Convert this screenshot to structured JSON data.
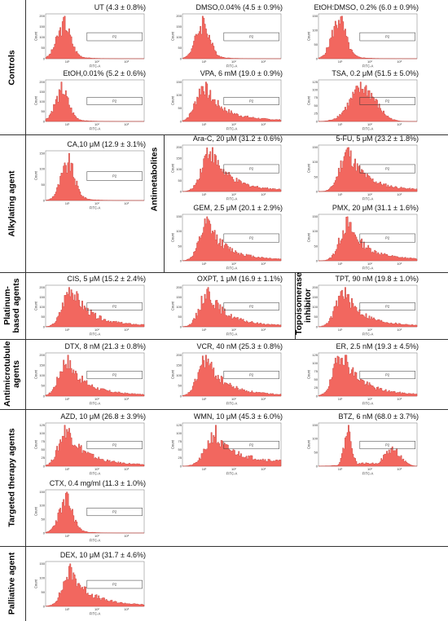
{
  "groups": [
    {
      "id": "controls",
      "label": "Controls"
    },
    {
      "id": "alkylating",
      "label": "Alkylating agent"
    },
    {
      "id": "antimetabolites",
      "label": "Antimetabolites"
    },
    {
      "id": "platinum",
      "label": "Platinum-based agents"
    },
    {
      "id": "topo",
      "label": "Topoisomerase inhibitor"
    },
    {
      "id": "antimicrotubule",
      "label": "Antimicrotubule agents"
    },
    {
      "id": "targeted",
      "label": "Targeted therapy agents"
    },
    {
      "id": "palliative",
      "label": "Palliative agent"
    }
  ],
  "axis": {
    "xlabel": "FITC-A",
    "ylabel": "Count",
    "gate_label": "P2",
    "xticks": [
      "10¹",
      "10²",
      "10³"
    ]
  },
  "chart_data": [
    {
      "type": "area",
      "title": "UT (4.3 ± 0.8%)",
      "shape": "low",
      "peak": 0.18,
      "yticks": [
        "0",
        "50",
        "100",
        "150",
        "200"
      ],
      "xlabel": "FITC-A",
      "ylabel": "Count"
    },
    {
      "type": "area",
      "title": "DMSO,0.04% (4.5 ± 0.9%)",
      "shape": "low",
      "peak": 0.2,
      "yticks": [
        "0",
        "50",
        "100",
        "150",
        "200"
      ],
      "xlabel": "FITC-A",
      "ylabel": "Count"
    },
    {
      "type": "area",
      "title": "EtOH:DMSO, 0.2% (6.0 ± 0.9%)",
      "shape": "low",
      "peak": 0.2,
      "yticks": [
        "0",
        "50",
        "100",
        "150"
      ],
      "xlabel": "FITC-A",
      "ylabel": "Count"
    },
    {
      "type": "area",
      "title": "EtOH,0.01% (5.2 ± 0.6%)",
      "shape": "low",
      "peak": 0.16,
      "yticks": [
        "0",
        "50",
        "100",
        "150",
        "200"
      ],
      "xlabel": "FITC-A",
      "ylabel": "Count"
    },
    {
      "type": "area",
      "title": "VPA, 6 mM (19.0 ± 0.9%)",
      "shape": "tail",
      "peak": 0.22,
      "yticks": [
        "0",
        "50",
        "100",
        "150"
      ],
      "xlabel": "FITC-A",
      "ylabel": "Count"
    },
    {
      "type": "area",
      "title": "TSA, 0.2 μM (51.5 ± 5.0%)",
      "shape": "mid",
      "peak": 0.45,
      "yticks": [
        "0",
        "25",
        "50",
        "75",
        "100",
        "125"
      ],
      "xlabel": "FITC-A",
      "ylabel": "Count"
    },
    {
      "type": "area",
      "title": "CA,10 μM (12.9 ± 3.1%)",
      "shape": "low",
      "peak": 0.22,
      "yticks": [
        "0",
        "50",
        "100",
        "150"
      ],
      "xlabel": "FITC-A",
      "ylabel": "Count"
    },
    {
      "type": "area",
      "title": "Ara-C, 20 μM (31.2 ± 0.6%)",
      "shape": "tail",
      "peak": 0.28,
      "yticks": [
        "0",
        "50",
        "100",
        "150",
        "200"
      ],
      "xlabel": "FITC-A",
      "ylabel": "Count"
    },
    {
      "type": "area",
      "title": "5-FU, 5 μM (23.2 ± 1.8%)",
      "shape": "tail",
      "peak": 0.3,
      "yticks": [
        "0",
        "50",
        "100",
        "150"
      ],
      "xlabel": "FITC-A",
      "ylabel": "Count"
    },
    {
      "type": "area",
      "title": "GEM, 2.5 μM (20.1 ± 2.9%)",
      "shape": "tail",
      "peak": 0.26,
      "yticks": [
        "0",
        "50",
        "100",
        "150"
      ],
      "xlabel": "FITC-A",
      "ylabel": "Count"
    },
    {
      "type": "area",
      "title": "PMX, 20 μM (31.1 ± 1.6%)",
      "shape": "tail",
      "peak": 0.3,
      "yticks": [
        "0",
        "50",
        "100",
        "150"
      ],
      "xlabel": "FITC-A",
      "ylabel": "Count"
    },
    {
      "type": "area",
      "title": "CIS, 5 μM (15.2 ± 2.4%)",
      "shape": "tail",
      "peak": 0.26,
      "yticks": [
        "0",
        "50",
        "100",
        "150",
        "200"
      ],
      "xlabel": "FITC-A",
      "ylabel": "Count"
    },
    {
      "type": "area",
      "title": "OXPT, 1 μM (16.9 ± 1.1%)",
      "shape": "tail",
      "peak": 0.26,
      "yticks": [
        "0",
        "50",
        "100",
        "150",
        "200"
      ],
      "xlabel": "FITC-A",
      "ylabel": "Count"
    },
    {
      "type": "area",
      "title": "TPT, 90 nM (19.8 ± 1.0%)",
      "shape": "tail",
      "peak": 0.26,
      "yticks": [
        "0",
        "50",
        "100",
        "150",
        "200"
      ],
      "xlabel": "FITC-A",
      "ylabel": "Count"
    },
    {
      "type": "area",
      "title": "DTX, 8 nM (21.3 ± 0.8%)",
      "shape": "tail",
      "peak": 0.22,
      "yticks": [
        "0",
        "50",
        "100",
        "150",
        "200"
      ],
      "xlabel": "FITC-A",
      "ylabel": "Count"
    },
    {
      "type": "area",
      "title": "VCR, 40 nM (25.3 ± 0.8%)",
      "shape": "tail",
      "peak": 0.24,
      "yticks": [
        "0",
        "50",
        "100",
        "150",
        "200"
      ],
      "xlabel": "FITC-A",
      "ylabel": "Count"
    },
    {
      "type": "area",
      "title": "ER, 2.5 nM (19.3 ± 4.5%)",
      "shape": "tail",
      "peak": 0.24,
      "yticks": [
        "0",
        "25",
        "50",
        "75",
        "100",
        "125"
      ],
      "xlabel": "FITC-A",
      "ylabel": "Count"
    },
    {
      "type": "area",
      "title": "AZD, 10 μM (26.8 ± 3.9%)",
      "shape": "tail",
      "peak": 0.22,
      "yticks": [
        "0",
        "25",
        "50",
        "75",
        "100",
        "125"
      ],
      "xlabel": "FITC-A",
      "ylabel": "Count"
    },
    {
      "type": "area",
      "title": "WMN, 10 μM (45.3 ± 6.0%)",
      "shape": "broad",
      "peak": 0.35,
      "yticks": [
        "0",
        "25",
        "50",
        "75",
        "100",
        "125"
      ],
      "xlabel": "FITC-A",
      "ylabel": "Count"
    },
    {
      "type": "area",
      "title": "BTZ, 6 nM (68.0 ± 3.7%)",
      "shape": "bimodal",
      "peak": 0.3,
      "yticks": [
        "0",
        "50",
        "100",
        "150"
      ],
      "xlabel": "FITC-A",
      "ylabel": "Count"
    },
    {
      "type": "area",
      "title": "CTX, 0.4 mg/ml (11.3 ± 1.0%)",
      "shape": "low",
      "peak": 0.2,
      "yticks": [
        "0",
        "50",
        "100",
        "150"
      ],
      "xlabel": "FITC-A",
      "ylabel": "Count"
    },
    {
      "type": "area",
      "title": "DEX, 10 μM (31.7 ± 4.6%)",
      "shape": "tail",
      "peak": 0.26,
      "yticks": [
        "0",
        "50",
        "100",
        "150"
      ],
      "xlabel": "FITC-A",
      "ylabel": "Count"
    }
  ]
}
